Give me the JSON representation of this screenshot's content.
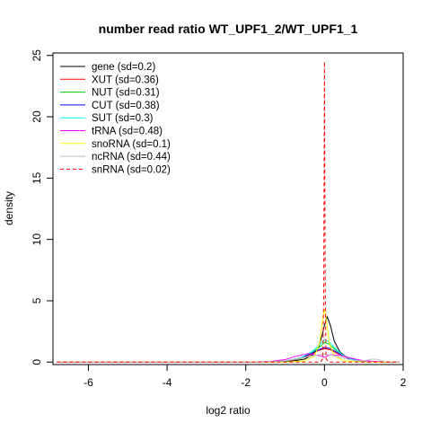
{
  "chart_data": {
    "type": "line",
    "title": "number read ratio WT_UPF1_2/WT_UPF1_1",
    "xlabel": "log2 ratio",
    "ylabel": "density",
    "xlim": [
      -6.9,
      2.0
    ],
    "ylim": [
      -0.2,
      25.2
    ],
    "x_ticks": [
      -6,
      -4,
      -2,
      0,
      2
    ],
    "y_ticks": [
      0,
      5,
      10,
      15,
      20,
      25
    ],
    "grid": false,
    "legend_position": "top-left",
    "series": [
      {
        "name": "gene (sd=0.2)",
        "color": "#000000",
        "dash": "solid",
        "points": [
          [
            -6.8,
            0
          ],
          [
            -2,
            0
          ],
          [
            -1.2,
            0.02
          ],
          [
            -0.8,
            0.08
          ],
          [
            -0.5,
            0.25
          ],
          [
            -0.3,
            0.6
          ],
          [
            -0.15,
            1.2
          ],
          [
            -0.05,
            2.3
          ],
          [
            0,
            3.0
          ],
          [
            0.07,
            3.7
          ],
          [
            0.15,
            3.0
          ],
          [
            0.25,
            1.7
          ],
          [
            0.4,
            0.8
          ],
          [
            0.6,
            0.3
          ],
          [
            0.9,
            0.08
          ],
          [
            1.3,
            0.02
          ],
          [
            1.9,
            0
          ]
        ]
      },
      {
        "name": "XUT (sd=0.36)",
        "color": "#ff0000",
        "dash": "solid",
        "points": [
          [
            -6.8,
            0
          ],
          [
            -1.8,
            0
          ],
          [
            -1.2,
            0.05
          ],
          [
            -0.8,
            0.15
          ],
          [
            -0.5,
            0.4
          ],
          [
            -0.3,
            0.7
          ],
          [
            -0.15,
            0.95
          ],
          [
            0,
            1.1
          ],
          [
            0.15,
            1.0
          ],
          [
            0.3,
            0.75
          ],
          [
            0.5,
            0.45
          ],
          [
            0.8,
            0.15
          ],
          [
            1.2,
            0.04
          ],
          [
            1.9,
            0
          ]
        ]
      },
      {
        "name": "NUT (sd=0.31)",
        "color": "#00cc00",
        "dash": "solid",
        "points": [
          [
            -6.8,
            0
          ],
          [
            -1.6,
            0
          ],
          [
            -1.0,
            0.08
          ],
          [
            -0.6,
            0.3
          ],
          [
            -0.3,
            0.8
          ],
          [
            -0.1,
            1.3
          ],
          [
            0,
            1.6
          ],
          [
            0.1,
            1.5
          ],
          [
            0.25,
            1.1
          ],
          [
            0.45,
            0.6
          ],
          [
            0.7,
            0.2
          ],
          [
            1.1,
            0.05
          ],
          [
            1.9,
            0
          ]
        ]
      },
      {
        "name": "CUT (sd=0.38)",
        "color": "#0000ff",
        "dash": "solid",
        "points": [
          [
            -6.8,
            0
          ],
          [
            -1.8,
            0
          ],
          [
            -1.1,
            0.06
          ],
          [
            -0.7,
            0.25
          ],
          [
            -0.4,
            0.6
          ],
          [
            -0.15,
            1.0
          ],
          [
            0,
            1.2
          ],
          [
            0.15,
            1.1
          ],
          [
            0.35,
            0.75
          ],
          [
            0.6,
            0.35
          ],
          [
            0.9,
            0.12
          ],
          [
            1.3,
            0.03
          ],
          [
            1.9,
            0
          ]
        ]
      },
      {
        "name": "SUT (sd=0.3)",
        "color": "#00ffff",
        "dash": "solid",
        "points": [
          [
            -6.8,
            0
          ],
          [
            -1.6,
            0
          ],
          [
            -1.0,
            0.1
          ],
          [
            -0.6,
            0.35
          ],
          [
            -0.3,
            0.9
          ],
          [
            -0.1,
            1.5
          ],
          [
            0,
            1.8
          ],
          [
            0.1,
            1.7
          ],
          [
            0.25,
            1.2
          ],
          [
            0.45,
            0.6
          ],
          [
            0.7,
            0.2
          ],
          [
            1.1,
            0.05
          ],
          [
            1.9,
            0
          ]
        ]
      },
      {
        "name": "tRNA (sd=0.48)",
        "color": "#ff00ff",
        "dash": "solid",
        "points": [
          [
            -6.8,
            0
          ],
          [
            -2.0,
            0
          ],
          [
            -1.4,
            0.05
          ],
          [
            -1.0,
            0.2
          ],
          [
            -0.7,
            0.5
          ],
          [
            -0.4,
            0.7
          ],
          [
            -0.1,
            0.5
          ],
          [
            0,
            0.4
          ],
          [
            0.15,
            0.6
          ],
          [
            0.4,
            0.55
          ],
          [
            0.7,
            0.3
          ],
          [
            1.0,
            0.1
          ],
          [
            1.5,
            0.02
          ],
          [
            1.9,
            0
          ]
        ]
      },
      {
        "name": "snoRNA (sd=0.1)",
        "color": "#ffff00",
        "dash": "solid",
        "points": [
          [
            -6.8,
            0
          ],
          [
            -1.0,
            0
          ],
          [
            -0.5,
            0.1
          ],
          [
            -0.25,
            0.5
          ],
          [
            -0.12,
            1.6
          ],
          [
            -0.05,
            3.5
          ],
          [
            0,
            4.3
          ],
          [
            0.05,
            3.4
          ],
          [
            0.12,
            1.6
          ],
          [
            0.25,
            0.5
          ],
          [
            0.5,
            0.1
          ],
          [
            1.0,
            0
          ],
          [
            1.9,
            0
          ]
        ]
      },
      {
        "name": "ncRNA (sd=0.44)",
        "color": "#bebebe",
        "dash": "solid",
        "points": [
          [
            -6.8,
            0
          ],
          [
            -1.8,
            0
          ],
          [
            -1.2,
            0.05
          ],
          [
            -0.8,
            0.2
          ],
          [
            -0.4,
            0.45
          ],
          [
            -0.15,
            0.6
          ],
          [
            0,
            0.65
          ],
          [
            0.2,
            0.55
          ],
          [
            0.5,
            0.3
          ],
          [
            0.8,
            0.1
          ],
          [
            1.0,
            0.1
          ],
          [
            1.2,
            0.25
          ],
          [
            1.35,
            0.22
          ],
          [
            1.5,
            0.05
          ],
          [
            1.9,
            0
          ]
        ]
      },
      {
        "name": "snRNA (sd=0.02)",
        "color": "#ff0000",
        "dash": "dashed",
        "points": [
          [
            -6.8,
            0
          ],
          [
            -0.1,
            0
          ],
          [
            -0.04,
            0.3
          ],
          [
            -0.02,
            5.5
          ],
          [
            -0.01,
            14
          ],
          [
            0,
            24.5
          ],
          [
            0.01,
            14
          ],
          [
            0.02,
            5.5
          ],
          [
            0.04,
            0.3
          ],
          [
            0.1,
            0
          ],
          [
            1.9,
            0
          ]
        ]
      }
    ]
  }
}
